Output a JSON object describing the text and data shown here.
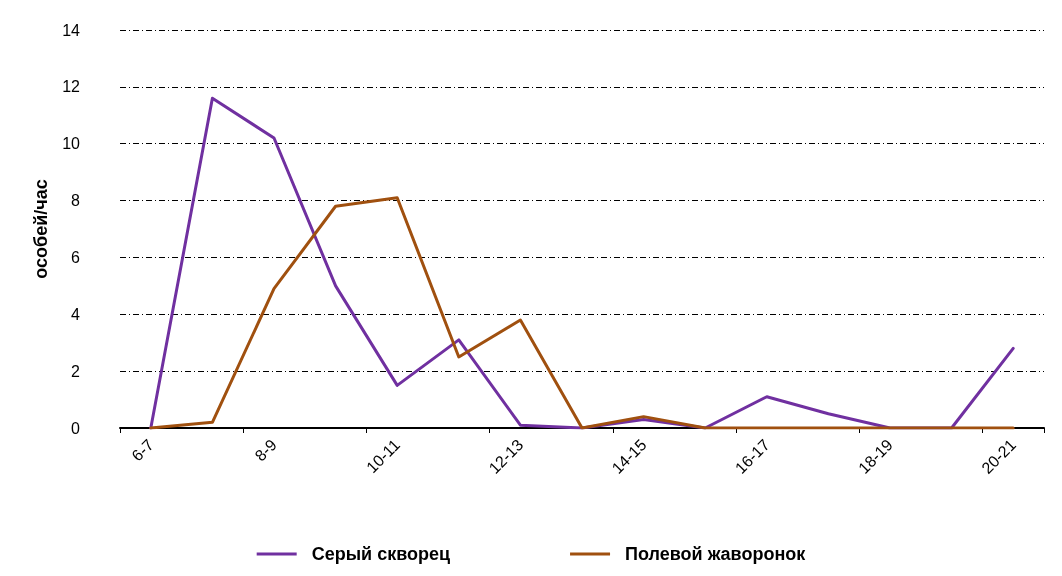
{
  "chart_data": {
    "type": "line",
    "ylabel": "особей/час",
    "categories": [
      "6-7",
      null,
      "8-9",
      null,
      "10-11",
      null,
      "12-13",
      null,
      "14-15",
      null,
      "16-17",
      null,
      "18-19",
      null,
      "20-21"
    ],
    "series": [
      {
        "name": "Серый скворец",
        "color": "#7030a0",
        "values": [
          0,
          11.6,
          10.2,
          5,
          1.5,
          3.1,
          0.1,
          0,
          0.3,
          0,
          1.1,
          0.5,
          0,
          0,
          2.8
        ]
      },
      {
        "name": "Полевой жаворонок",
        "color": "#a0500f",
        "values": [
          0,
          0.2,
          4.9,
          7.8,
          8.1,
          2.5,
          3.8,
          0,
          0.4,
          0,
          0,
          0,
          0,
          0,
          0
        ]
      }
    ],
    "ylim": [
      0,
      14
    ],
    "yticks": [
      0,
      2,
      4,
      6,
      8,
      10,
      12,
      14
    ],
    "grid": "y",
    "legend": "bottom",
    "marker": "none",
    "line_style": "solid"
  }
}
